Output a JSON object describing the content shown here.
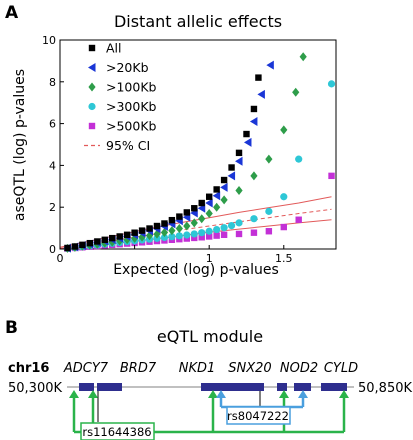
{
  "panel_a": {
    "letter": "A"
  },
  "panel_b": {
    "letter": "B",
    "title": "eQTL module",
    "chrom": "chr16",
    "start_label": "50,300K",
    "end_label": "50,850K",
    "genes": [
      "ADCY7",
      "BRD7",
      "NKD1",
      "SNX20",
      "NOD2",
      "CYLD"
    ],
    "snps": [
      {
        "label": "rs11644386",
        "color": "#2ab34a"
      },
      {
        "label": "rs8047222",
        "color": "#4a9fde"
      }
    ],
    "gene_color": "#2e2e8e"
  },
  "chart_data": {
    "type": "scatter",
    "title": "Distant allelic effects",
    "xlabel": "Expected (log) p-values",
    "ylabel": "aseQTL (log) p-values",
    "xlim": [
      0,
      1.85
    ],
    "ylim": [
      0,
      10
    ],
    "xticks": [
      0,
      0.5,
      1,
      1.5
    ],
    "xtick_labels": [
      "0",
      "",
      "1",
      "1.5"
    ],
    "yticks": [
      0,
      2,
      4,
      6,
      8,
      10
    ],
    "grid": false,
    "legend_position": "top-left",
    "series": [
      {
        "name": "All",
        "marker": "square",
        "color": "#000000",
        "points": [
          [
            0.05,
            0.05
          ],
          [
            0.1,
            0.12
          ],
          [
            0.15,
            0.2
          ],
          [
            0.2,
            0.28
          ],
          [
            0.25,
            0.36
          ],
          [
            0.3,
            0.44
          ],
          [
            0.35,
            0.52
          ],
          [
            0.4,
            0.6
          ],
          [
            0.45,
            0.68
          ],
          [
            0.5,
            0.78
          ],
          [
            0.55,
            0.88
          ],
          [
            0.6,
            0.98
          ],
          [
            0.65,
            1.1
          ],
          [
            0.7,
            1.22
          ],
          [
            0.75,
            1.38
          ],
          [
            0.8,
            1.55
          ],
          [
            0.85,
            1.75
          ],
          [
            0.9,
            1.95
          ],
          [
            0.95,
            2.2
          ],
          [
            1.0,
            2.5
          ],
          [
            1.05,
            2.85
          ],
          [
            1.1,
            3.3
          ],
          [
            1.15,
            3.9
          ],
          [
            1.2,
            4.6
          ],
          [
            1.25,
            5.5
          ],
          [
            1.3,
            6.7
          ],
          [
            1.33,
            8.2
          ]
        ]
      },
      {
        "name": ">20Kb",
        "marker": "triangle-left",
        "color": "#1a36d6",
        "points": [
          [
            0.05,
            0.04
          ],
          [
            0.1,
            0.1
          ],
          [
            0.15,
            0.17
          ],
          [
            0.2,
            0.24
          ],
          [
            0.25,
            0.31
          ],
          [
            0.3,
            0.38
          ],
          [
            0.35,
            0.45
          ],
          [
            0.4,
            0.52
          ],
          [
            0.45,
            0.6
          ],
          [
            0.5,
            0.68
          ],
          [
            0.55,
            0.77
          ],
          [
            0.6,
            0.87
          ],
          [
            0.65,
            0.97
          ],
          [
            0.7,
            1.08
          ],
          [
            0.75,
            1.2
          ],
          [
            0.8,
            1.35
          ],
          [
            0.85,
            1.52
          ],
          [
            0.9,
            1.72
          ],
          [
            0.95,
            1.95
          ],
          [
            1.0,
            2.2
          ],
          [
            1.05,
            2.55
          ],
          [
            1.1,
            2.95
          ],
          [
            1.15,
            3.5
          ],
          [
            1.2,
            4.2
          ],
          [
            1.26,
            5.1
          ],
          [
            1.3,
            6.1
          ],
          [
            1.35,
            7.4
          ],
          [
            1.41,
            8.8
          ]
        ]
      },
      {
        "name": ">100Kb",
        "marker": "diamond",
        "color": "#2e9d4a",
        "points": [
          [
            0.05,
            0.03
          ],
          [
            0.1,
            0.08
          ],
          [
            0.15,
            0.13
          ],
          [
            0.2,
            0.18
          ],
          [
            0.25,
            0.23
          ],
          [
            0.3,
            0.28
          ],
          [
            0.35,
            0.33
          ],
          [
            0.4,
            0.39
          ],
          [
            0.45,
            0.45
          ],
          [
            0.5,
            0.51
          ],
          [
            0.55,
            0.57
          ],
          [
            0.6,
            0.64
          ],
          [
            0.65,
            0.71
          ],
          [
            0.7,
            0.79
          ],
          [
            0.75,
            0.88
          ],
          [
            0.8,
            0.98
          ],
          [
            0.85,
            1.1
          ],
          [
            0.9,
            1.25
          ],
          [
            0.95,
            1.45
          ],
          [
            1.0,
            1.7
          ],
          [
            1.05,
            2.0
          ],
          [
            1.1,
            2.35
          ],
          [
            1.2,
            2.8
          ],
          [
            1.3,
            3.5
          ],
          [
            1.4,
            4.3
          ],
          [
            1.5,
            5.7
          ],
          [
            1.58,
            7.5
          ],
          [
            1.63,
            9.2
          ]
        ]
      },
      {
        "name": ">300Kb",
        "marker": "circle",
        "color": "#2ec7d6",
        "points": [
          [
            0.05,
            0.03
          ],
          [
            0.1,
            0.07
          ],
          [
            0.15,
            0.11
          ],
          [
            0.2,
            0.15
          ],
          [
            0.25,
            0.19
          ],
          [
            0.3,
            0.23
          ],
          [
            0.35,
            0.27
          ],
          [
            0.4,
            0.31
          ],
          [
            0.45,
            0.35
          ],
          [
            0.5,
            0.39
          ],
          [
            0.55,
            0.43
          ],
          [
            0.6,
            0.47
          ],
          [
            0.65,
            0.51
          ],
          [
            0.7,
            0.55
          ],
          [
            0.75,
            0.59
          ],
          [
            0.8,
            0.63
          ],
          [
            0.85,
            0.67
          ],
          [
            0.9,
            0.72
          ],
          [
            0.95,
            0.78
          ],
          [
            1.0,
            0.85
          ],
          [
            1.05,
            0.93
          ],
          [
            1.1,
            1.02
          ],
          [
            1.15,
            1.12
          ],
          [
            1.2,
            1.25
          ],
          [
            1.3,
            1.45
          ],
          [
            1.4,
            1.8
          ],
          [
            1.5,
            2.5
          ],
          [
            1.6,
            4.3
          ],
          [
            1.82,
            7.9
          ]
        ]
      },
      {
        "name": ">500Kb",
        "marker": "square",
        "color": "#c330d6",
        "points": [
          [
            0.05,
            0.02
          ],
          [
            0.1,
            0.05
          ],
          [
            0.15,
            0.08
          ],
          [
            0.2,
            0.11
          ],
          [
            0.25,
            0.14
          ],
          [
            0.3,
            0.17
          ],
          [
            0.35,
            0.2
          ],
          [
            0.4,
            0.23
          ],
          [
            0.45,
            0.26
          ],
          [
            0.5,
            0.29
          ],
          [
            0.55,
            0.32
          ],
          [
            0.6,
            0.35
          ],
          [
            0.65,
            0.38
          ],
          [
            0.7,
            0.41
          ],
          [
            0.75,
            0.44
          ],
          [
            0.8,
            0.47
          ],
          [
            0.85,
            0.5
          ],
          [
            0.9,
            0.53
          ],
          [
            0.95,
            0.56
          ],
          [
            1.0,
            0.6
          ],
          [
            1.05,
            0.64
          ],
          [
            1.1,
            0.68
          ],
          [
            1.2,
            0.72
          ],
          [
            1.3,
            0.78
          ],
          [
            1.4,
            0.85
          ],
          [
            1.5,
            1.05
          ],
          [
            1.6,
            1.4
          ],
          [
            1.82,
            3.5
          ]
        ]
      }
    ],
    "ci": {
      "name": "95% CI",
      "color": "#e25a5a",
      "x": [
        0,
        0.2,
        0.4,
        0.6,
        0.8,
        1.0,
        1.2,
        1.4,
        1.6,
        1.82
      ],
      "upper": [
        0.08,
        0.38,
        0.68,
        0.98,
        1.25,
        1.5,
        1.75,
        1.98,
        2.2,
        2.5
      ],
      "lower": [
        0.0,
        0.12,
        0.28,
        0.45,
        0.62,
        0.8,
        0.95,
        1.1,
        1.25,
        1.4
      ],
      "mid": [
        0.03,
        0.22,
        0.45,
        0.68,
        0.9,
        1.1,
        1.3,
        1.5,
        1.7,
        1.9
      ]
    }
  }
}
